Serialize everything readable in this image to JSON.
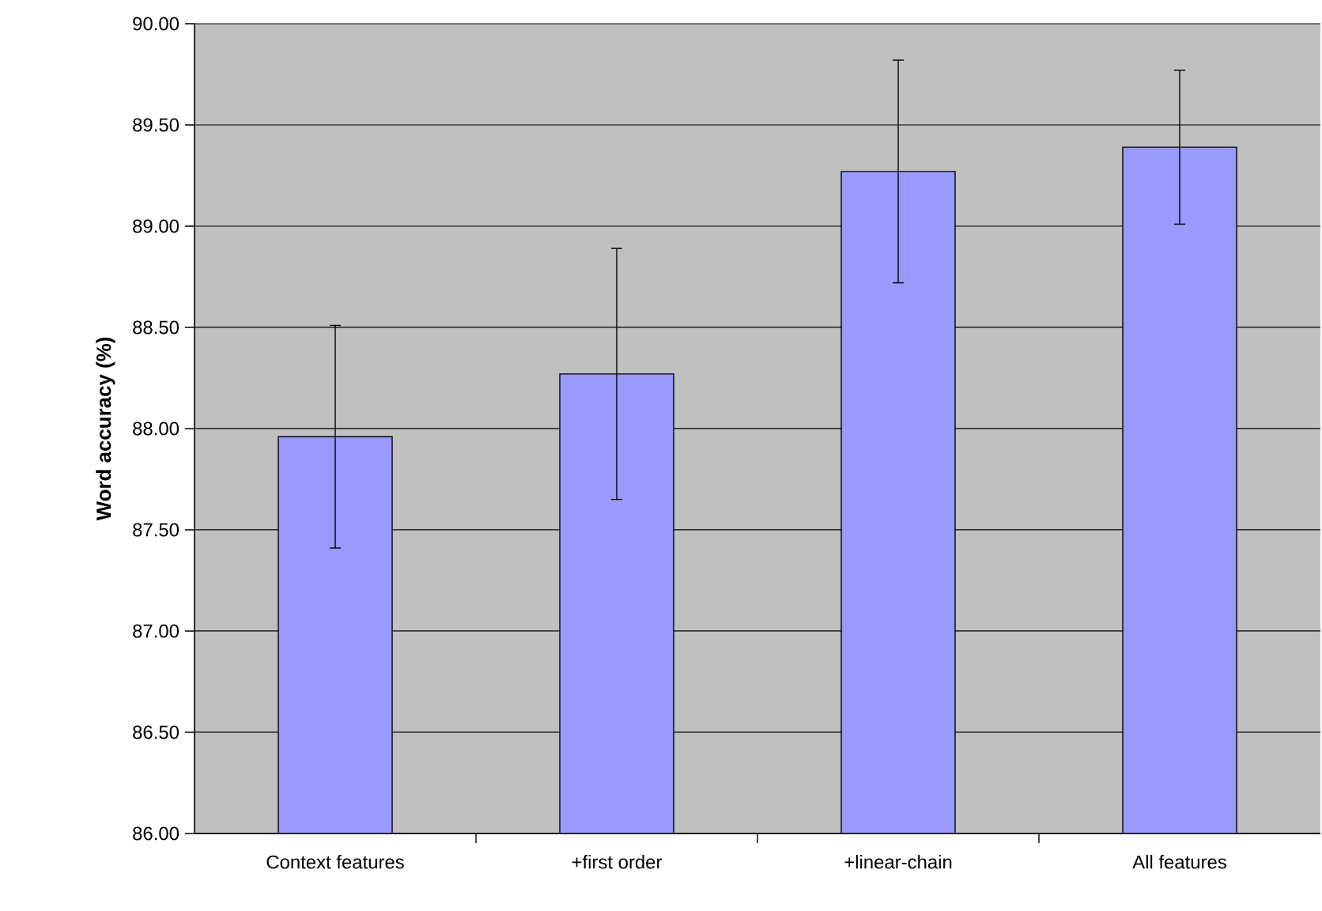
{
  "chart_data": {
    "type": "bar",
    "ylabel": "Word accuracy (%)",
    "categories": [
      "Context features",
      "+first order",
      "+linear-chain",
      "All features"
    ],
    "values": [
      87.96,
      88.27,
      89.27,
      89.39
    ],
    "errors": [
      0.55,
      0.62,
      0.55,
      0.38
    ],
    "color": "#9999ff",
    "ylim": [
      86,
      90
    ],
    "yticks": [
      {
        "value": 86,
        "label": "86.00"
      },
      {
        "value": 86.5,
        "label": "86.50"
      },
      {
        "value": 87,
        "label": "87.00"
      },
      {
        "value": 87.5,
        "label": "87.50"
      },
      {
        "value": 88,
        "label": "88.00"
      },
      {
        "value": 88.5,
        "label": "88.50"
      },
      {
        "value": 89,
        "label": "89.00"
      },
      {
        "value": 89.5,
        "label": "89.50"
      },
      {
        "value": 90,
        "label": "90.00"
      }
    ],
    "grid": "y"
  }
}
